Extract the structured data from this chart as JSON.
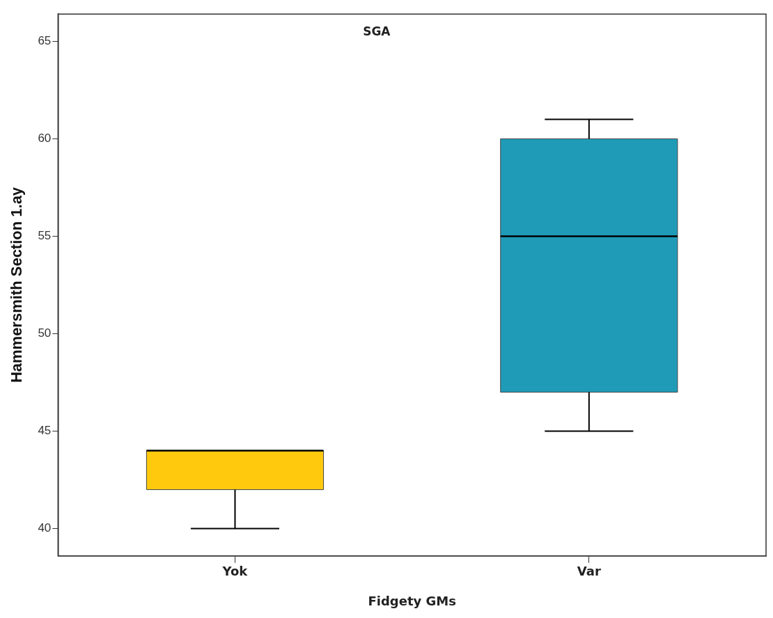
{
  "chart_data": {
    "type": "box",
    "title": "SGA",
    "xlabel": "Fidgety GMs",
    "ylabel": "Hammersmith Section 1.ay",
    "categories": [
      "Yok",
      "Var"
    ],
    "boxes": [
      {
        "low": 40,
        "q1": 42,
        "median": 44,
        "q3": 44,
        "high": 44
      },
      {
        "low": 45,
        "q1": 47,
        "median": 55,
        "q3": 60,
        "high": 61
      }
    ],
    "colors": [
      "#ffc90e",
      "#1f9bb8"
    ],
    "ylim": [
      38.6,
      66.4
    ],
    "yticks": [
      40,
      45,
      50,
      55,
      60,
      65
    ],
    "grid": false,
    "legend": false
  }
}
